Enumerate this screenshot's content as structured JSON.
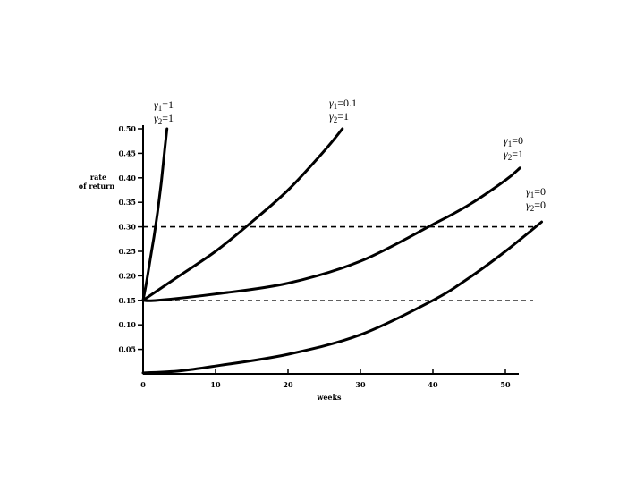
{
  "chart_data": {
    "type": "line",
    "title": "",
    "xlabel": "weeks",
    "ylabel": "rate of return",
    "ylabel_lines": [
      "rate",
      "of return"
    ],
    "xlim": [
      0,
      55
    ],
    "ylim": [
      0,
      0.5
    ],
    "xticks": [
      0,
      10,
      20,
      30,
      40,
      50
    ],
    "xtick_labels": [
      "0",
      "10",
      "20",
      "30",
      "40",
      "50"
    ],
    "yticks": [
      0.05,
      0.1,
      0.15,
      0.2,
      0.25,
      0.3,
      0.35,
      0.4,
      0.45,
      0.5
    ],
    "ytick_labels": [
      "0.05",
      "0.10",
      "0.15",
      "0.20",
      "0.25",
      "0.30",
      "0.35",
      "0.40",
      "0.45",
      "0.50"
    ],
    "grid": false,
    "reference_lines": [
      {
        "y": 0.3,
        "style": "dashed-heavy"
      },
      {
        "y": 0.15,
        "style": "dashed-light"
      }
    ],
    "series": [
      {
        "label_lines": [
          {
            "sym": "γ",
            "sub": "1",
            "val": "=1"
          },
          {
            "sym": "γ",
            "sub": "2",
            "val": "=1"
          }
        ],
        "x": [
          0,
          0.5,
          1,
          1.5,
          2,
          2.5,
          3,
          3.3
        ],
        "y": [
          0.15,
          0.19,
          0.235,
          0.28,
          0.33,
          0.39,
          0.46,
          0.5
        ]
      },
      {
        "label_lines": [
          {
            "sym": "γ",
            "sub": "1",
            "val": "=0.1"
          },
          {
            "sym": "γ",
            "sub": "2",
            "val": "=1"
          }
        ],
        "x": [
          0,
          5,
          10,
          15,
          20,
          25,
          27.5
        ],
        "y": [
          0.15,
          0.2,
          0.25,
          0.31,
          0.375,
          0.455,
          0.5
        ]
      },
      {
        "label_lines": [
          {
            "sym": "γ",
            "sub": "1",
            "val": "=0"
          },
          {
            "sym": "γ",
            "sub": "2",
            "val": "=1"
          }
        ],
        "x": [
          0,
          2,
          10,
          20,
          30,
          40,
          45,
          50,
          52
        ],
        "y": [
          0.15,
          0.15,
          0.163,
          0.185,
          0.23,
          0.305,
          0.345,
          0.395,
          0.42
        ]
      },
      {
        "label_lines": [
          {
            "sym": "γ",
            "sub": "1",
            "val": "=0"
          },
          {
            "sym": "γ",
            "sub": "2",
            "val": "=0"
          }
        ],
        "x": [
          0,
          5,
          10,
          20,
          30,
          40,
          45,
          50,
          55
        ],
        "y": [
          0.002,
          0.006,
          0.016,
          0.04,
          0.08,
          0.15,
          0.196,
          0.25,
          0.31
        ]
      }
    ]
  }
}
